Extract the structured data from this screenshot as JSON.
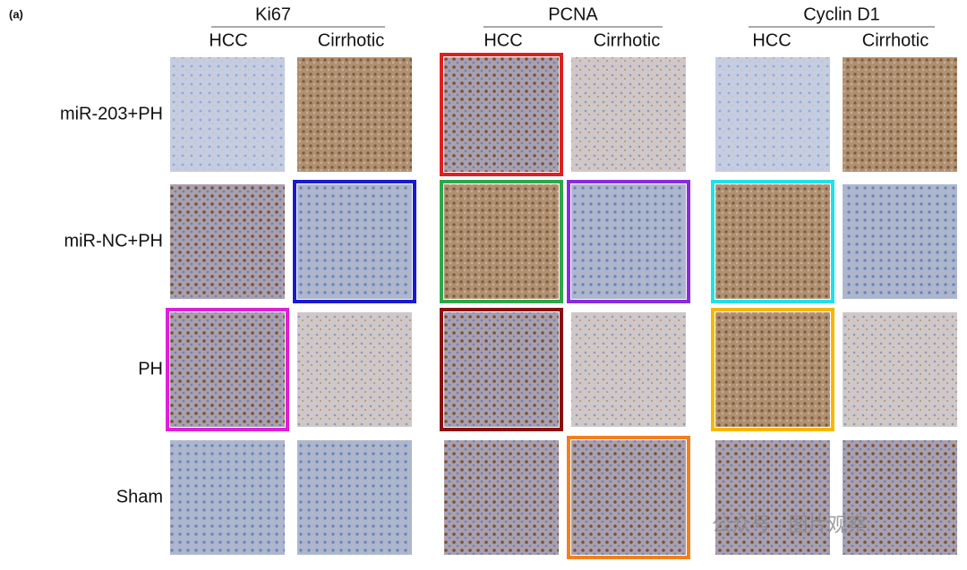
{
  "panel_label": "(a)",
  "groups": [
    {
      "title": "Ki67",
      "columns": [
        "HCC",
        "Cirrhotic"
      ]
    },
    {
      "title": "PCNA",
      "columns": [
        "HCC",
        "Cirrhotic"
      ]
    },
    {
      "title": "Cyclin D1",
      "columns": [
        "HCC",
        "Cirrhotic"
      ]
    }
  ],
  "rows": [
    "miR-203+PH",
    "miR-NC+PH",
    "PH",
    "Sham"
  ],
  "watermark": "公众号 · 图片观察"
}
